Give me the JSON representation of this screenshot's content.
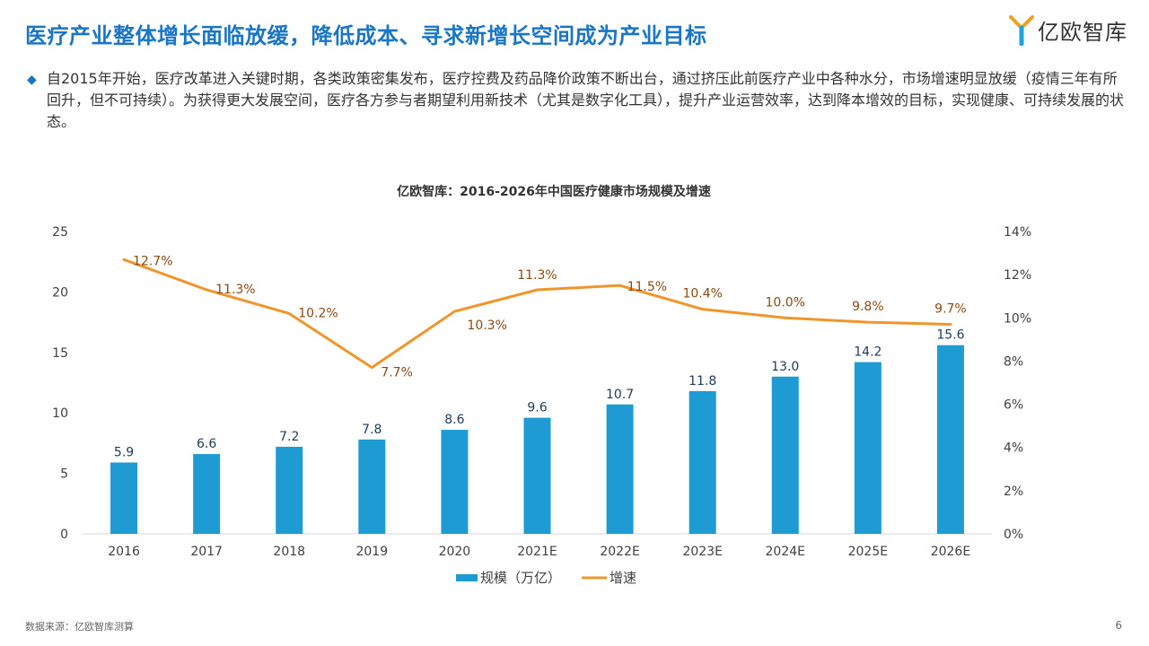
{
  "header": {
    "title": "医疗产业整体增长面临放缓，降低成本、寻求新增长空间成为产业目标",
    "logo_text": "亿欧智库"
  },
  "intro": {
    "bullet": "◆",
    "text": "自2015年开始，医疗改革进入关键时期，各类政策密集发布，医疗控费及药品降价政策不断出台，通过挤压此前医疗产业中各种水分，市场增速明显放缓（疫情三年有所回升，但不可持续）。为获得更大发展空间，医疗各方参与者期望利用新技术（尤其是数字化工具），提升产业运营效率，达到降本增效的目标，实现健康、可持续发展的状态。"
  },
  "chart_data": {
    "type": "bar",
    "title": "亿欧智库：2016-2026年中国医疗健康市场规模及增速",
    "categories": [
      "2016",
      "2017",
      "2018",
      "2019",
      "2020",
      "2021E",
      "2022E",
      "2023E",
      "2024E",
      "2025E",
      "2026E"
    ],
    "series": [
      {
        "name": "规模（万亿）",
        "type": "bar",
        "axis": "left",
        "values": [
          5.9,
          6.6,
          7.2,
          7.8,
          8.6,
          9.6,
          10.7,
          11.8,
          13.0,
          14.2,
          15.6
        ],
        "labels": [
          "5.9",
          "6.6",
          "7.2",
          "7.8",
          "8.6",
          "9.6",
          "10.7",
          "11.8",
          "13.0",
          "14.2",
          "15.6"
        ],
        "color": "#1f9bd3"
      },
      {
        "name": "增速",
        "type": "line",
        "axis": "right",
        "values": [
          12.7,
          11.3,
          10.2,
          7.7,
          10.3,
          11.3,
          11.5,
          10.4,
          10.0,
          9.8,
          9.7
        ],
        "labels": [
          "12.7%",
          "11.3%",
          "10.2%",
          "7.7%",
          "10.3%",
          "11.3%",
          "11.5%",
          "10.4%",
          "10.0%",
          "9.8%",
          "9.7%"
        ],
        "color": "#f0952a"
      }
    ],
    "y_left": {
      "ylim": [
        0,
        25
      ],
      "ticks": [
        "0",
        "5",
        "10",
        "15",
        "20",
        "25"
      ]
    },
    "y_right": {
      "ylim": [
        0,
        14
      ],
      "ticks": [
        "0%",
        "2%",
        "4%",
        "6%",
        "8%",
        "10%",
        "12%",
        "14%"
      ]
    },
    "grid": false,
    "legend_position": "bottom-center",
    "label_color": "#1f3a5a",
    "line_label_color": "#8a4a12"
  },
  "footer": {
    "source": "数据来源：亿欧智库测算",
    "page": "6"
  }
}
